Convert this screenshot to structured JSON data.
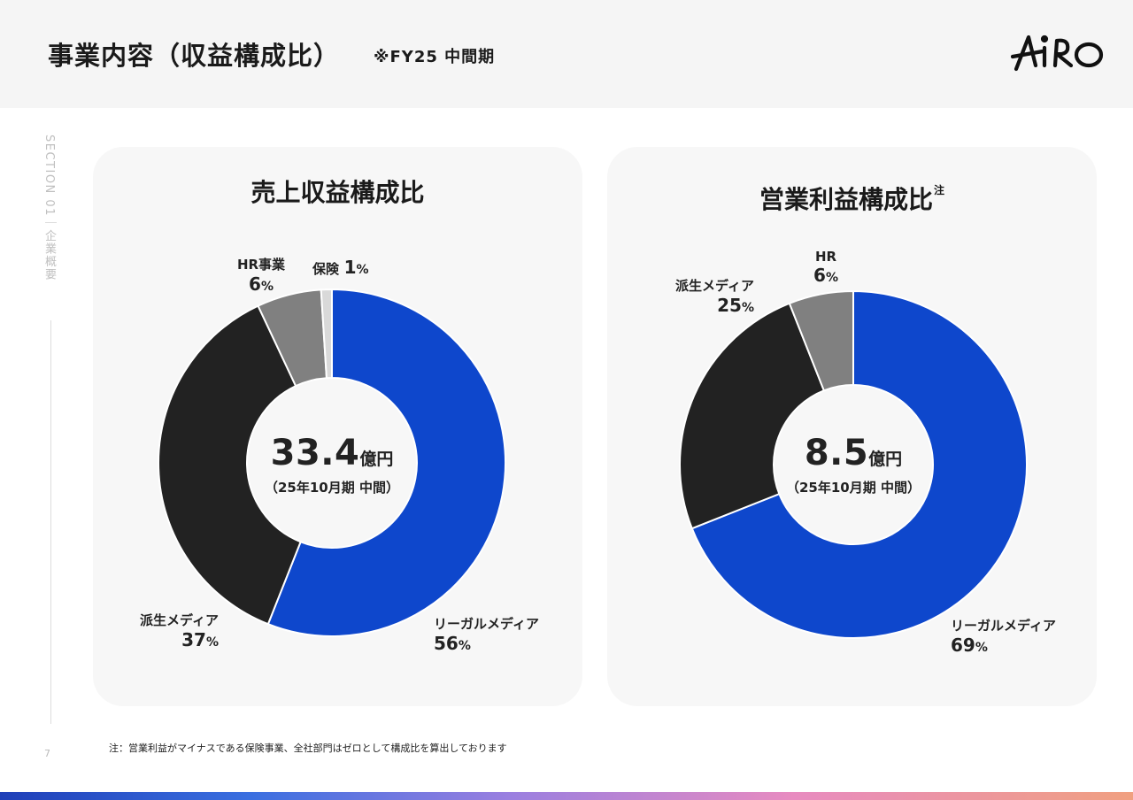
{
  "header": {
    "title": "事業内容（収益構成比）",
    "subtitle": "※FY25 中間期",
    "logo_text": "AIRO"
  },
  "sidebar": {
    "section_label": "SECTION 01｜企業概要",
    "page_number": "7"
  },
  "chart_data": [
    {
      "type": "pie",
      "title": "売上収益構成比",
      "center_value": "33.4",
      "center_unit": "億円",
      "center_note": "（25年10月期 中間）",
      "slices": [
        {
          "name": "リーガルメディア",
          "value": 56,
          "label": "56",
          "color": "#0e47cc"
        },
        {
          "name": "派生メディア",
          "value": 37,
          "label": "37",
          "color": "#222222"
        },
        {
          "name": "HR事業",
          "value": 6,
          "label": "6",
          "color": "#808080"
        },
        {
          "name": "保険",
          "value": 1,
          "label": "1",
          "color": "#d9d9d9"
        }
      ],
      "percent_sign": "%"
    },
    {
      "type": "pie",
      "title": "営業利益構成比",
      "title_note": "注",
      "center_value": "8.5",
      "center_unit": "億円",
      "center_note": "（25年10月期 中間）",
      "slices": [
        {
          "name": "リーガルメディア",
          "value": 69,
          "label": "69",
          "color": "#0e47cc"
        },
        {
          "name": "派生メディア",
          "value": 25,
          "label": "25",
          "color": "#222222"
        },
        {
          "name": "HR",
          "value": 6,
          "label": "6",
          "color": "#808080"
        }
      ],
      "percent_sign": "%"
    }
  ],
  "footnote": "注：営業利益がマイナスである保険事業、全社部門はゼロとして構成比を算出しております"
}
